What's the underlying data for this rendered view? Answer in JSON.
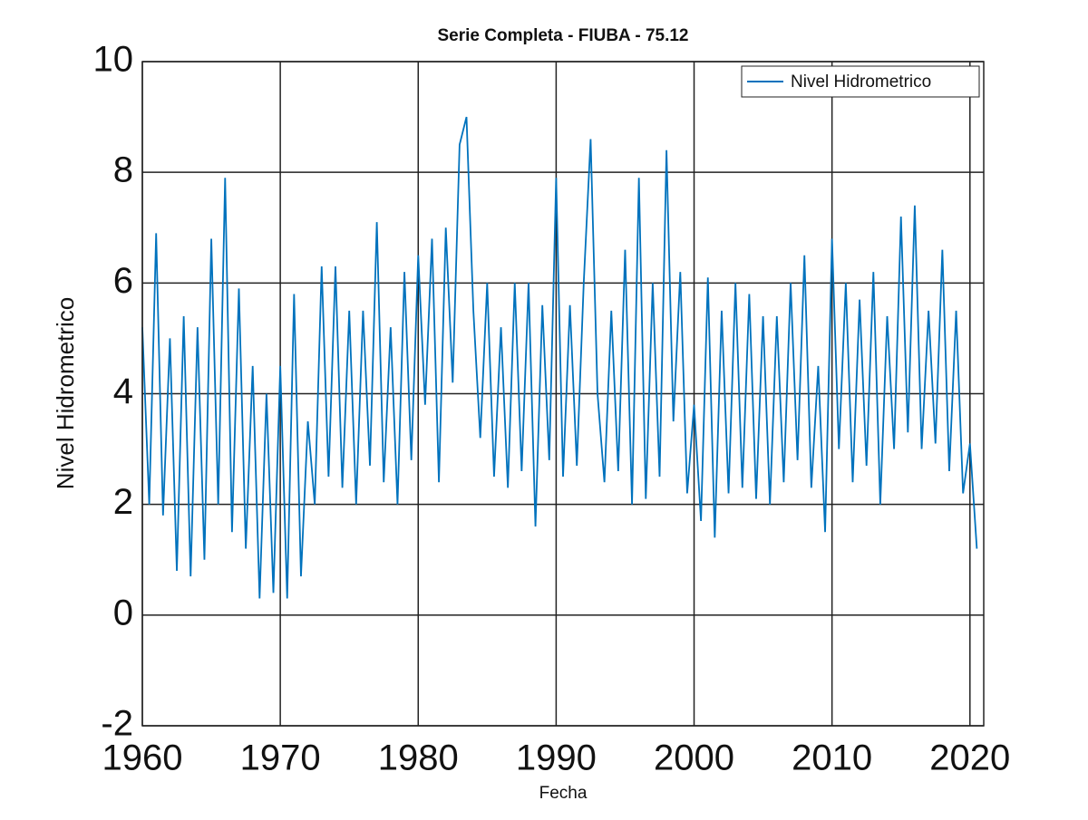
{
  "chart_data": {
    "type": "line",
    "title": "Serie Completa - FIUBA - 75.12",
    "x_label": "Fecha",
    "y_label": "Nivel Hidrometrico",
    "x": [
      1960,
      1960.5,
      1961,
      1961.5,
      1962,
      1962.5,
      1963,
      1963.5,
      1964,
      1964.5,
      1965,
      1965.5,
      1966,
      1966.5,
      1967,
      1967.5,
      1968,
      1968.5,
      1969,
      1969.5,
      1970,
      1970.5,
      1971,
      1971.5,
      1972,
      1972.5,
      1973,
      1973.5,
      1974,
      1974.5,
      1975,
      1975.5,
      1976,
      1976.5,
      1977,
      1977.5,
      1978,
      1978.5,
      1979,
      1979.5,
      1980,
      1980.5,
      1981,
      1981.5,
      1982,
      1982.5,
      1983,
      1983.5,
      1984,
      1984.5,
      1985,
      1985.5,
      1986,
      1986.5,
      1987,
      1987.5,
      1988,
      1988.5,
      1989,
      1989.5,
      1990,
      1990.5,
      1991,
      1991.5,
      1992,
      1992.5,
      1993,
      1993.5,
      1994,
      1994.5,
      1995,
      1995.5,
      1996,
      1996.5,
      1997,
      1997.5,
      1998,
      1998.5,
      1999,
      1999.5,
      2000,
      2000.5,
      2001,
      2001.5,
      2002,
      2002.5,
      2003,
      2003.5,
      2004,
      2004.5,
      2005,
      2005.5,
      2006,
      2006.5,
      2007,
      2007.5,
      2008,
      2008.5,
      2009,
      2009.5,
      2010,
      2010.5,
      2011,
      2011.5,
      2012,
      2012.5,
      2013,
      2013.5,
      2014,
      2014.5,
      2015,
      2015.5,
      2016,
      2016.5,
      2017,
      2017.5,
      2018,
      2018.5,
      2019,
      2019.5,
      2020,
      2020.5
    ],
    "series": [
      {
        "name": "Nivel Hidrometrico",
        "color": "#0072bd",
        "values": [
          5.2,
          2.0,
          6.9,
          1.8,
          5.0,
          0.8,
          5.4,
          0.7,
          5.2,
          1.0,
          6.8,
          2.0,
          7.9,
          1.5,
          5.9,
          1.2,
          4.5,
          0.3,
          4.0,
          0.4,
          4.5,
          0.3,
          5.8,
          0.7,
          3.5,
          2.0,
          6.3,
          2.5,
          6.3,
          2.3,
          5.5,
          2.0,
          5.5,
          2.7,
          7.1,
          2.4,
          5.2,
          2.0,
          6.2,
          2.8,
          6.5,
          3.8,
          6.8,
          2.4,
          7.0,
          4.2,
          8.5,
          9.0,
          5.5,
          3.2,
          6.0,
          2.5,
          5.2,
          2.3,
          6.0,
          2.6,
          6.0,
          1.6,
          5.6,
          2.8,
          7.9,
          2.5,
          5.6,
          2.7,
          6.0,
          8.6,
          4.0,
          2.4,
          5.5,
          2.6,
          6.6,
          2.0,
          7.9,
          2.1,
          6.0,
          2.5,
          8.4,
          3.5,
          6.2,
          2.2,
          3.8,
          1.7,
          6.1,
          1.4,
          5.5,
          2.2,
          6.0,
          2.3,
          5.8,
          2.1,
          5.4,
          2.0,
          5.4,
          2.4,
          6.0,
          2.8,
          6.5,
          2.3,
          4.5,
          1.5,
          6.8,
          3.0,
          6.0,
          2.4,
          5.7,
          2.7,
          6.2,
          2.0,
          5.4,
          3.0,
          7.2,
          3.3,
          7.4,
          3.0,
          5.5,
          3.1,
          6.6,
          2.6,
          5.5,
          2.2,
          3.1,
          1.2
        ]
      }
    ],
    "xlim": [
      1960,
      2021
    ],
    "xticks": [
      1960,
      1970,
      1980,
      1990,
      2000,
      2010,
      2020
    ],
    "ylim": [
      -2,
      10
    ],
    "yticks": [
      -2,
      0,
      2,
      4,
      6,
      8,
      10
    ],
    "grid": true,
    "legend": "upper right"
  }
}
